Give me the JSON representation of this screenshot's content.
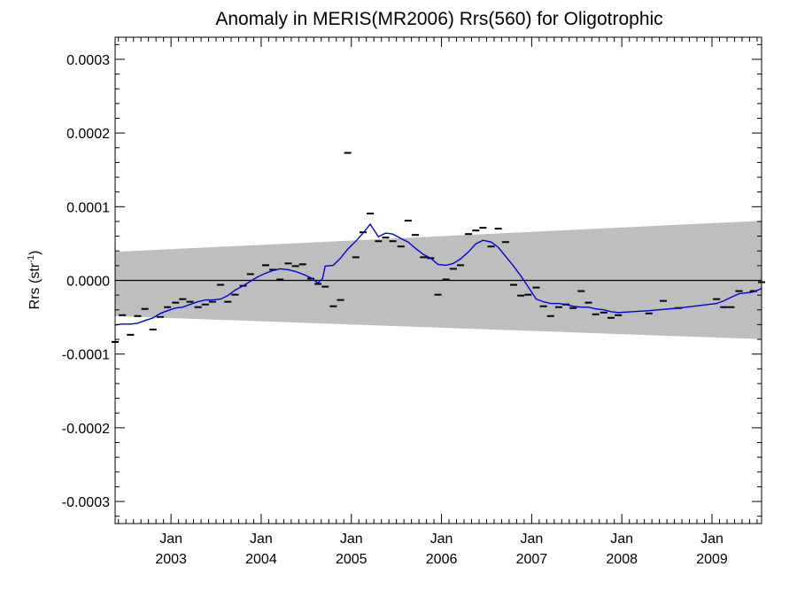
{
  "chart_data": {
    "type": "line",
    "title": "Anomaly in MERIS(MR2006) Rrs(560) for Oligotrophic",
    "xlabel": "",
    "ylabel_main": "Rrs (str",
    "ylabel_sup": "-1",
    "ylabel_close": ")",
    "xlim": [
      2002.38,
      2009.55
    ],
    "ylim": [
      -0.00033,
      0.00033
    ],
    "yticks": [
      {
        "value": 0.0003,
        "label": "0.0003"
      },
      {
        "value": 0.0002,
        "label": "0.0002"
      },
      {
        "value": 0.0001,
        "label": "0.0001"
      },
      {
        "value": 0.0,
        "label": "0.0000"
      },
      {
        "value": -0.0001,
        "label": "-0.0001"
      },
      {
        "value": -0.0002,
        "label": "-0.0002"
      },
      {
        "value": -0.0003,
        "label": "-0.0003"
      }
    ],
    "xticks": [
      {
        "value": 2003.0,
        "month": "Jan",
        "year": "2003"
      },
      {
        "value": 2004.0,
        "month": "Jan",
        "year": "2004"
      },
      {
        "value": 2005.0,
        "month": "Jan",
        "year": "2005"
      },
      {
        "value": 2006.0,
        "month": "Jan",
        "year": "2006"
      },
      {
        "value": 2007.0,
        "month": "Jan",
        "year": "2007"
      },
      {
        "value": 2008.0,
        "month": "Jan",
        "year": "2008"
      },
      {
        "value": 2009.0,
        "month": "Jan",
        "year": "2009"
      }
    ],
    "envelope": {
      "upper": [
        [
          2002.38,
          3.87e-05
        ],
        [
          2009.55,
          8.09e-05
        ]
      ],
      "lower": [
        [
          2002.38,
          -4.84e-05
        ],
        [
          2009.55,
          -7.97e-05
        ]
      ],
      "color": "#bebebe"
    },
    "zero_line": 0.0,
    "monthly_anomalies": {
      "color": "#000000",
      "points": [
        [
          2002.38,
          -8.35e-05
        ],
        [
          2002.46,
          -4.72e-05
        ],
        [
          2002.55,
          -7.38e-05
        ],
        [
          2002.63,
          -4.84e-05
        ],
        [
          2002.71,
          -3.87e-05
        ],
        [
          2002.8,
          -6.66e-05
        ],
        [
          2002.88,
          -4.96e-05
        ],
        [
          2002.96,
          -3.63e-05
        ],
        [
          2003.05,
          -3.02e-05
        ],
        [
          2003.13,
          -2.54e-05
        ],
        [
          2003.21,
          -2.9e-05
        ],
        [
          2003.3,
          -3.63e-05
        ],
        [
          2003.38,
          -3.27e-05
        ],
        [
          2003.46,
          -2.9e-05
        ],
        [
          2003.55,
          -6e-06
        ],
        [
          2003.63,
          -2.9e-05
        ],
        [
          2003.71,
          -1.94e-05
        ],
        [
          2003.8,
          -7.3e-06
        ],
        [
          2003.88,
          8.5e-06
        ],
        [
          2004.05,
          2.06e-05
        ],
        [
          2004.13,
          1.45e-05
        ],
        [
          2004.21,
          1.2e-06
        ],
        [
          2004.3,
          2.3e-05
        ],
        [
          2004.38,
          1.94e-05
        ],
        [
          2004.46,
          2.18e-05
        ],
        [
          2004.55,
          2.4e-06
        ],
        [
          2004.63,
          -4.8e-06
        ],
        [
          2004.71,
          -8.5e-06
        ],
        [
          2004.8,
          -3.51e-05
        ],
        [
          2004.88,
          -2.66e-05
        ],
        [
          2004.96,
          0.000173
        ],
        [
          2005.05,
          3.14e-05
        ],
        [
          2005.13,
          6.53e-05
        ],
        [
          2005.21,
          9.07e-05
        ],
        [
          2005.3,
          5.32e-05
        ],
        [
          2005.38,
          5.81e-05
        ],
        [
          2005.46,
          5.32e-05
        ],
        [
          2005.55,
          4.6e-05
        ],
        [
          2005.63,
          8.11e-05
        ],
        [
          2005.71,
          6.17e-05
        ],
        [
          2005.8,
          3.14e-05
        ],
        [
          2005.88,
          3.02e-05
        ],
        [
          2005.96,
          -1.94e-05
        ],
        [
          2006.05,
          1.2e-06
        ],
        [
          2006.13,
          1.57e-05
        ],
        [
          2006.21,
          2.06e-05
        ],
        [
          2006.3,
          6.29e-05
        ],
        [
          2006.38,
          6.77e-05
        ],
        [
          2006.46,
          7.14e-05
        ],
        [
          2006.55,
          4.6e-05
        ],
        [
          2006.63,
          7.02e-05
        ],
        [
          2006.71,
          5.2e-05
        ],
        [
          2006.8,
          -6e-06
        ],
        [
          2006.88,
          -2.06e-05
        ],
        [
          2006.96,
          -1.94e-05
        ],
        [
          2007.05,
          -9.7e-06
        ],
        [
          2007.13,
          -3.51e-05
        ],
        [
          2007.21,
          -4.84e-05
        ],
        [
          2007.3,
          -3.63e-05
        ],
        [
          2007.38,
          -3.27e-05
        ],
        [
          2007.46,
          -3.75e-05
        ],
        [
          2007.55,
          -1.45e-05
        ],
        [
          2007.63,
          -3.02e-05
        ],
        [
          2007.71,
          -4.6e-05
        ],
        [
          2007.8,
          -4.36e-05
        ],
        [
          2007.88,
          -5.08e-05
        ],
        [
          2007.96,
          -4.72e-05
        ],
        [
          2008.3,
          -4.48e-05
        ],
        [
          2008.46,
          -2.78e-05
        ],
        [
          2008.63,
          -3.75e-05
        ],
        [
          2009.05,
          -2.54e-05
        ],
        [
          2009.13,
          -3.63e-05
        ],
        [
          2009.21,
          -3.63e-05
        ],
        [
          2009.3,
          -1.45e-05
        ],
        [
          2009.46,
          -1.45e-05
        ],
        [
          2009.55,
          -2.4e-06
        ]
      ]
    },
    "series": [
      {
        "color": "#0000dd",
        "points": [
          [
            2002.38,
            -6.05e-05
          ],
          [
            2002.46,
            -5.93e-05
          ],
          [
            2002.55,
            -5.93e-05
          ],
          [
            2002.63,
            -5.81e-05
          ],
          [
            2002.71,
            -5.45e-05
          ],
          [
            2002.8,
            -5.08e-05
          ],
          [
            2002.88,
            -4.48e-05
          ],
          [
            2002.96,
            -4.11e-05
          ],
          [
            2003.05,
            -3.75e-05
          ],
          [
            2003.13,
            -3.63e-05
          ],
          [
            2003.21,
            -3.27e-05
          ],
          [
            2003.3,
            -2.9e-05
          ],
          [
            2003.38,
            -2.66e-05
          ],
          [
            2003.46,
            -2.66e-05
          ],
          [
            2003.55,
            -2.54e-05
          ],
          [
            2003.63,
            -2.06e-05
          ],
          [
            2003.71,
            -1.33e-05
          ],
          [
            2003.8,
            -7.3e-06
          ],
          [
            2003.88,
            -1.2e-06
          ],
          [
            2003.96,
            4.8e-06
          ],
          [
            2004.05,
            9.7e-06
          ],
          [
            2004.13,
            1.33e-05
          ],
          [
            2004.21,
            1.57e-05
          ],
          [
            2004.3,
            1.45e-05
          ],
          [
            2004.38,
            1.21e-05
          ],
          [
            2004.46,
            8.5e-06
          ],
          [
            2004.55,
            3.6e-06
          ],
          [
            2004.63,
            -3.6e-06
          ],
          [
            2004.68,
            2.4e-06
          ],
          [
            2004.71,
            1.94e-05
          ],
          [
            2004.8,
            2.06e-05
          ],
          [
            2004.88,
            3.02e-05
          ],
          [
            2004.96,
            4.24e-05
          ],
          [
            2005.05,
            5.32e-05
          ],
          [
            2005.13,
            6.42e-05
          ],
          [
            2005.21,
            7.62e-05
          ],
          [
            2005.3,
            5.93e-05
          ],
          [
            2005.38,
            6.42e-05
          ],
          [
            2005.46,
            6.29e-05
          ],
          [
            2005.55,
            5.69e-05
          ],
          [
            2005.63,
            5.2e-05
          ],
          [
            2005.71,
            4.36e-05
          ],
          [
            2005.8,
            3.51e-05
          ],
          [
            2005.88,
            3.02e-05
          ],
          [
            2005.96,
            2.18e-05
          ],
          [
            2006.05,
            2.06e-05
          ],
          [
            2006.13,
            2.3e-05
          ],
          [
            2006.21,
            2.9e-05
          ],
          [
            2006.3,
            3.87e-05
          ],
          [
            2006.38,
            4.96e-05
          ],
          [
            2006.46,
            5.45e-05
          ],
          [
            2006.55,
            5.2e-05
          ],
          [
            2006.63,
            4.48e-05
          ],
          [
            2006.71,
            3.27e-05
          ],
          [
            2006.8,
            1.94e-05
          ],
          [
            2006.88,
            6e-06
          ],
          [
            2006.96,
            -8.5e-06
          ],
          [
            2007.05,
            -2.54e-05
          ],
          [
            2007.13,
            -2.9e-05
          ],
          [
            2007.21,
            -3.14e-05
          ],
          [
            2007.3,
            -3.14e-05
          ],
          [
            2007.38,
            -3.27e-05
          ],
          [
            2007.46,
            -3.51e-05
          ],
          [
            2007.55,
            -3.63e-05
          ],
          [
            2007.63,
            -3.63e-05
          ],
          [
            2007.71,
            -3.87e-05
          ],
          [
            2007.8,
            -3.99e-05
          ],
          [
            2007.88,
            -4.24e-05
          ],
          [
            2007.96,
            -4.36e-05
          ],
          [
            2008.3,
            -4.11e-05
          ],
          [
            2008.63,
            -3.75e-05
          ],
          [
            2008.96,
            -3.27e-05
          ],
          [
            2009.05,
            -3.14e-05
          ],
          [
            2009.13,
            -2.78e-05
          ],
          [
            2009.21,
            -2.3e-05
          ],
          [
            2009.3,
            -1.82e-05
          ],
          [
            2009.46,
            -1.57e-05
          ],
          [
            2009.55,
            -1.09e-05
          ]
        ]
      }
    ]
  }
}
